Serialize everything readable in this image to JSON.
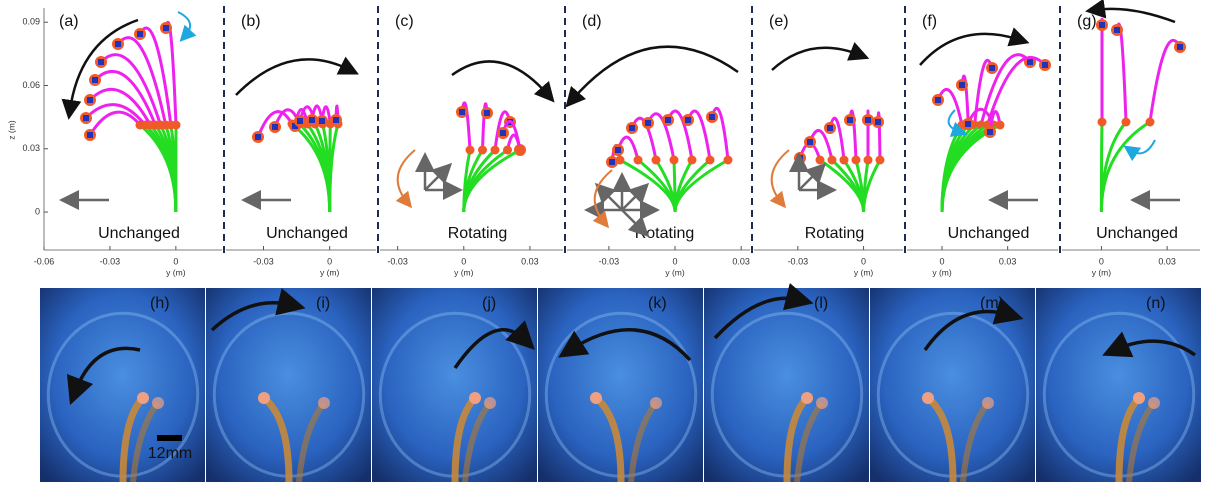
{
  "z_axis": {
    "label": "z (m)",
    "ylim": [
      -0.018,
      0.092
    ],
    "ticks": [
      0,
      0.03,
      0.06,
      0.09
    ]
  },
  "panels": [
    {
      "label": "(a)",
      "caption": "Unchanged",
      "xlabel": "y (m)",
      "xlim": [
        -0.06,
        0.021
      ],
      "xticks": [
        -0.06,
        -0.03,
        0
      ]
    },
    {
      "label": "(b)",
      "caption": "Unchanged",
      "xlabel": "y (m)",
      "xlim": [
        -0.047,
        0.021
      ],
      "xticks": [
        -0.03,
        0
      ]
    },
    {
      "label": "(c)",
      "caption": "Rotating",
      "xlabel": "y (m)",
      "xlim": [
        -0.038,
        0.045
      ],
      "xticks": [
        -0.03,
        0,
        0.03
      ]
    },
    {
      "label": "(d)",
      "caption": "Rotating",
      "xlabel": "y (m)",
      "xlim": [
        -0.049,
        0.034
      ],
      "xticks": [
        -0.03,
        0,
        0.03
      ]
    },
    {
      "label": "(e)",
      "caption": "Rotating",
      "xlabel": "y (m)",
      "xlim": [
        -0.05,
        0.018
      ],
      "xticks": [
        -0.03,
        0
      ]
    },
    {
      "label": "(f)",
      "caption": "Unchanged",
      "xlabel": "y (m)",
      "xlim": [
        -0.016,
        0.053
      ],
      "xticks": [
        0,
        0.03
      ]
    },
    {
      "label": "(g)",
      "caption": "Unchanged",
      "xlabel": "y (m)",
      "xlim": [
        -0.018,
        0.045
      ],
      "xticks": [
        0,
        0.03
      ]
    }
  ],
  "photos": [
    {
      "label": "(h)"
    },
    {
      "label": "(i)"
    },
    {
      "label": "(j)"
    },
    {
      "label": "(k)"
    },
    {
      "label": "(l)"
    },
    {
      "label": "(m)"
    },
    {
      "label": "(n)"
    }
  ],
  "scale_bar": "12mm"
}
